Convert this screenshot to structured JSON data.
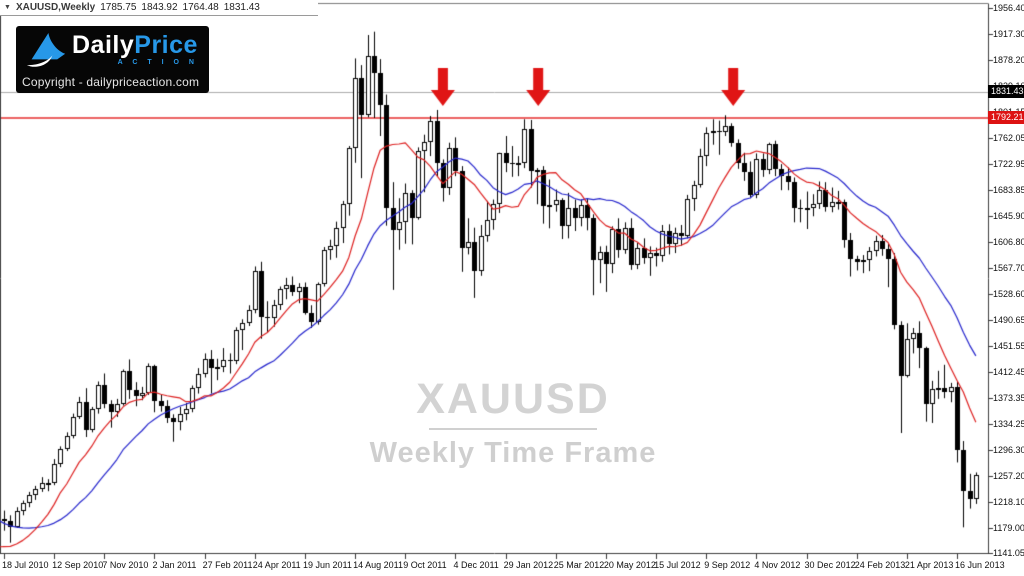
{
  "header": {
    "dropdown_icon": "▼",
    "symbol": "XAUUSD,Weekly",
    "open": "1785.75",
    "high": "1843.92",
    "low": "1764.48",
    "close": "1831.43"
  },
  "logo": {
    "brand_first": "Daily",
    "brand_second": "Price",
    "brand_sub": "A C T I O N",
    "copyright": "Copyright - dailypriceaction.com"
  },
  "watermark": {
    "title": "XAUUSD",
    "subtitle": "Weekly Time Frame"
  },
  "chart_data": {
    "type": "candlestick",
    "symbol": "XAUUSD",
    "timeframe": "Weekly",
    "ylim": [
      1141.05,
      1956.4
    ],
    "y_tick_labels": [
      "1956.40",
      "1917.30",
      "1878.20",
      "1839.10",
      "1801.15",
      "1762.05",
      "1722.95",
      "1683.85",
      "1645.90",
      "1606.80",
      "1567.70",
      "1528.60",
      "1490.65",
      "1451.55",
      "1412.45",
      "1373.35",
      "1334.25",
      "1296.30",
      "1257.20",
      "1218.10",
      "1179.00",
      "1141.05"
    ],
    "x_tick_labels": [
      "18 Jul 2010",
      "12 Sep 2010",
      "7 Nov 2010",
      "2 Jan 2011",
      "27 Feb 2011",
      "24 Apr 2011",
      "19 Jun 2011",
      "14 Aug 2011",
      "9 Oct 2011",
      "4 Dec 2011",
      "29 Jan 2012",
      "25 Mar 2012",
      "20 May 2012",
      "15 Jul 2012",
      "9 Sep 2012",
      "4 Nov 2012",
      "30 Dec 2012",
      "24 Feb 2013",
      "21 Apr 2013",
      "16 Jun 2013"
    ],
    "weeks_per_x_tick": 8,
    "up_color": "#ffffff",
    "down_color": "#000000",
    "outline_color": "#000000",
    "ma_fast": {
      "period": 10,
      "type": "sma",
      "color": "#dd2020"
    },
    "ma_slow": {
      "period": 20,
      "type": "sma",
      "color": "#2424cc"
    },
    "ma_seed_closes": [
      1260,
      1253,
      1246,
      1239,
      1232,
      1225,
      1218,
      1210,
      1202,
      1194,
      1186,
      1178,
      1170,
      1162,
      1154,
      1146,
      1138,
      1131,
      1125,
      1120
    ],
    "hlines": [
      {
        "price": 1831.43,
        "label": "1831.43",
        "line_color": "#ababab",
        "line_width": 1,
        "badge_bg": "#000000",
        "badge_fg": "#ffffff",
        "name": "current-price"
      },
      {
        "price": 1792.21,
        "label": "1792.21",
        "line_color": "#ec6161",
        "line_width": 2,
        "badge_bg": "#dd1212",
        "badge_fg": "#ffffff",
        "name": "resistance-line"
      }
    ],
    "arrows": [
      {
        "week": 70.0,
        "tip_price": 1810
      },
      {
        "week": 85.2,
        "tip_price": 1810
      },
      {
        "week": 116.3,
        "tip_price": 1810
      }
    ],
    "arrow_color": "#e01515",
    "candles_ohlc": [
      [
        1193,
        1205,
        1175,
        1189
      ],
      [
        1189,
        1198,
        1157,
        1181
      ],
      [
        1181,
        1210,
        1179,
        1205
      ],
      [
        1205,
        1220,
        1198,
        1216
      ],
      [
        1216,
        1233,
        1210,
        1228
      ],
      [
        1228,
        1242,
        1221,
        1237
      ],
      [
        1237,
        1255,
        1233,
        1246
      ],
      [
        1246,
        1252,
        1234,
        1246
      ],
      [
        1246,
        1282,
        1243,
        1275
      ],
      [
        1275,
        1301,
        1270,
        1297
      ],
      [
        1297,
        1322,
        1294,
        1317
      ],
      [
        1317,
        1350,
        1313,
        1345
      ],
      [
        1345,
        1375,
        1342,
        1368
      ],
      [
        1368,
        1388,
        1315,
        1325
      ],
      [
        1325,
        1360,
        1322,
        1357
      ],
      [
        1357,
        1398,
        1350,
        1393
      ],
      [
        1393,
        1410,
        1358,
        1365
      ],
      [
        1365,
        1370,
        1329,
        1353
      ],
      [
        1353,
        1372,
        1345,
        1364
      ],
      [
        1364,
        1416,
        1362,
        1414
      ],
      [
        1414,
        1431,
        1372,
        1385
      ],
      [
        1385,
        1397,
        1361,
        1376
      ],
      [
        1376,
        1390,
        1370,
        1381
      ],
      [
        1381,
        1425,
        1378,
        1421
      ],
      [
        1421,
        1423,
        1352,
        1369
      ],
      [
        1369,
        1378,
        1353,
        1361
      ],
      [
        1361,
        1370,
        1336,
        1343
      ],
      [
        1343,
        1349,
        1308,
        1337
      ],
      [
        1337,
        1360,
        1325,
        1349
      ],
      [
        1349,
        1366,
        1340,
        1357
      ],
      [
        1357,
        1392,
        1352,
        1389
      ],
      [
        1389,
        1418,
        1380,
        1409
      ],
      [
        1409,
        1440,
        1404,
        1432
      ],
      [
        1432,
        1445,
        1380,
        1418
      ],
      [
        1418,
        1432,
        1400,
        1420
      ],
      [
        1420,
        1448,
        1412,
        1430
      ],
      [
        1430,
        1440,
        1410,
        1428
      ],
      [
        1428,
        1479,
        1424,
        1475
      ],
      [
        1475,
        1491,
        1445,
        1486
      ],
      [
        1486,
        1512,
        1481,
        1505
      ],
      [
        1505,
        1570,
        1500,
        1563
      ],
      [
        1563,
        1577,
        1462,
        1495
      ],
      [
        1495,
        1518,
        1471,
        1493
      ],
      [
        1493,
        1520,
        1480,
        1512
      ],
      [
        1512,
        1540,
        1505,
        1537
      ],
      [
        1537,
        1553,
        1521,
        1542
      ],
      [
        1542,
        1555,
        1526,
        1532
      ],
      [
        1532,
        1545,
        1515,
        1539
      ],
      [
        1539,
        1546,
        1498,
        1500
      ],
      [
        1500,
        1512,
        1478,
        1487
      ],
      [
        1487,
        1546,
        1483,
        1544
      ],
      [
        1544,
        1599,
        1540,
        1594
      ],
      [
        1594,
        1610,
        1580,
        1601
      ],
      [
        1601,
        1637,
        1583,
        1628
      ],
      [
        1628,
        1668,
        1605,
        1663
      ],
      [
        1663,
        1750,
        1646,
        1747
      ],
      [
        1747,
        1881,
        1725,
        1852
      ],
      [
        1852,
        1871,
        1702,
        1797
      ],
      [
        1797,
        1916,
        1793,
        1884
      ],
      [
        1884,
        1921,
        1792,
        1859
      ],
      [
        1859,
        1880,
        1765,
        1812
      ],
      [
        1812,
        1827,
        1631,
        1657
      ],
      [
        1657,
        1696,
        1535,
        1624
      ],
      [
        1624,
        1672,
        1595,
        1636
      ],
      [
        1636,
        1694,
        1604,
        1680
      ],
      [
        1680,
        1684,
        1603,
        1642
      ],
      [
        1642,
        1748,
        1640,
        1743
      ],
      [
        1743,
        1767,
        1681,
        1756
      ],
      [
        1756,
        1795,
        1735,
        1788
      ],
      [
        1788,
        1804,
        1705,
        1725
      ],
      [
        1725,
        1730,
        1667,
        1688
      ],
      [
        1688,
        1755,
        1677,
        1747
      ],
      [
        1747,
        1763,
        1705,
        1712
      ],
      [
        1712,
        1720,
        1562,
        1598
      ],
      [
        1598,
        1642,
        1588,
        1606
      ],
      [
        1606,
        1628,
        1523,
        1563
      ],
      [
        1563,
        1632,
        1556,
        1616
      ],
      [
        1616,
        1668,
        1607,
        1639
      ],
      [
        1639,
        1670,
        1625,
        1664
      ],
      [
        1664,
        1740,
        1650,
        1739
      ],
      [
        1739,
        1765,
        1711,
        1725
      ],
      [
        1725,
        1750,
        1704,
        1723
      ],
      [
        1723,
        1735,
        1705,
        1724
      ],
      [
        1724,
        1790,
        1717,
        1776
      ],
      [
        1776,
        1789,
        1688,
        1712
      ],
      [
        1712,
        1717,
        1663,
        1714
      ],
      [
        1714,
        1720,
        1634,
        1660
      ],
      [
        1660,
        1700,
        1627,
        1662
      ],
      [
        1662,
        1685,
        1652,
        1669
      ],
      [
        1669,
        1672,
        1611,
        1630
      ],
      [
        1630,
        1680,
        1612,
        1658
      ],
      [
        1658,
        1670,
        1623,
        1643
      ],
      [
        1643,
        1670,
        1630,
        1662
      ],
      [
        1662,
        1672,
        1624,
        1642
      ],
      [
        1642,
        1648,
        1527,
        1579
      ],
      [
        1579,
        1600,
        1545,
        1592
      ],
      [
        1592,
        1601,
        1532,
        1573
      ],
      [
        1573,
        1630,
        1560,
        1626
      ],
      [
        1626,
        1642,
        1583,
        1594
      ],
      [
        1594,
        1636,
        1589,
        1628
      ],
      [
        1628,
        1642,
        1565,
        1572
      ],
      [
        1572,
        1605,
        1566,
        1597
      ],
      [
        1597,
        1612,
        1574,
        1583
      ],
      [
        1583,
        1600,
        1556,
        1590
      ],
      [
        1590,
        1598,
        1570,
        1585
      ],
      [
        1585,
        1632,
        1577,
        1623
      ],
      [
        1623,
        1633,
        1588,
        1603
      ],
      [
        1603,
        1628,
        1590,
        1620
      ],
      [
        1620,
        1632,
        1601,
        1616
      ],
      [
        1616,
        1677,
        1612,
        1671
      ],
      [
        1671,
        1698,
        1653,
        1692
      ],
      [
        1692,
        1746,
        1688,
        1735
      ],
      [
        1735,
        1778,
        1720,
        1770
      ],
      [
        1770,
        1790,
        1752,
        1773
      ],
      [
        1773,
        1788,
        1737,
        1771
      ],
      [
        1771,
        1796,
        1765,
        1780
      ],
      [
        1780,
        1784,
        1749,
        1754
      ],
      [
        1754,
        1760,
        1716,
        1724
      ],
      [
        1724,
        1740,
        1698,
        1711
      ],
      [
        1711,
        1727,
        1672,
        1677
      ],
      [
        1677,
        1739,
        1672,
        1731
      ],
      [
        1731,
        1739,
        1704,
        1714
      ],
      [
        1714,
        1755,
        1708,
        1753
      ],
      [
        1753,
        1758,
        1705,
        1715
      ],
      [
        1715,
        1723,
        1684,
        1705
      ],
      [
        1705,
        1718,
        1684,
        1697
      ],
      [
        1697,
        1703,
        1636,
        1657
      ],
      [
        1657,
        1670,
        1636,
        1656
      ],
      [
        1656,
        1682,
        1626,
        1657
      ],
      [
        1657,
        1678,
        1645,
        1663
      ],
      [
        1663,
        1697,
        1656,
        1684
      ],
      [
        1684,
        1696,
        1652,
        1659
      ],
      [
        1659,
        1688,
        1651,
        1667
      ],
      [
        1667,
        1683,
        1655,
        1667
      ],
      [
        1667,
        1670,
        1598,
        1610
      ],
      [
        1610,
        1620,
        1555,
        1581
      ],
      [
        1581,
        1586,
        1564,
        1576
      ],
      [
        1576,
        1587,
        1560,
        1579
      ],
      [
        1579,
        1599,
        1563,
        1593
      ],
      [
        1593,
        1616,
        1585,
        1608
      ],
      [
        1608,
        1617,
        1586,
        1596
      ],
      [
        1596,
        1604,
        1539,
        1581
      ],
      [
        1581,
        1590,
        1476,
        1483
      ],
      [
        1483,
        1488,
        1321,
        1406
      ],
      [
        1406,
        1485,
        1404,
        1462
      ],
      [
        1462,
        1478,
        1440,
        1470
      ],
      [
        1470,
        1488,
        1418,
        1448
      ],
      [
        1448,
        1450,
        1338,
        1364
      ],
      [
        1364,
        1399,
        1336,
        1387
      ],
      [
        1387,
        1414,
        1372,
        1388
      ],
      [
        1388,
        1423,
        1373,
        1383
      ],
      [
        1383,
        1396,
        1367,
        1390
      ],
      [
        1390,
        1399,
        1277,
        1296
      ],
      [
        1296,
        1309,
        1180,
        1235
      ],
      [
        1235,
        1260,
        1208,
        1223
      ],
      [
        1223,
        1262,
        1215,
        1258
      ]
    ]
  }
}
